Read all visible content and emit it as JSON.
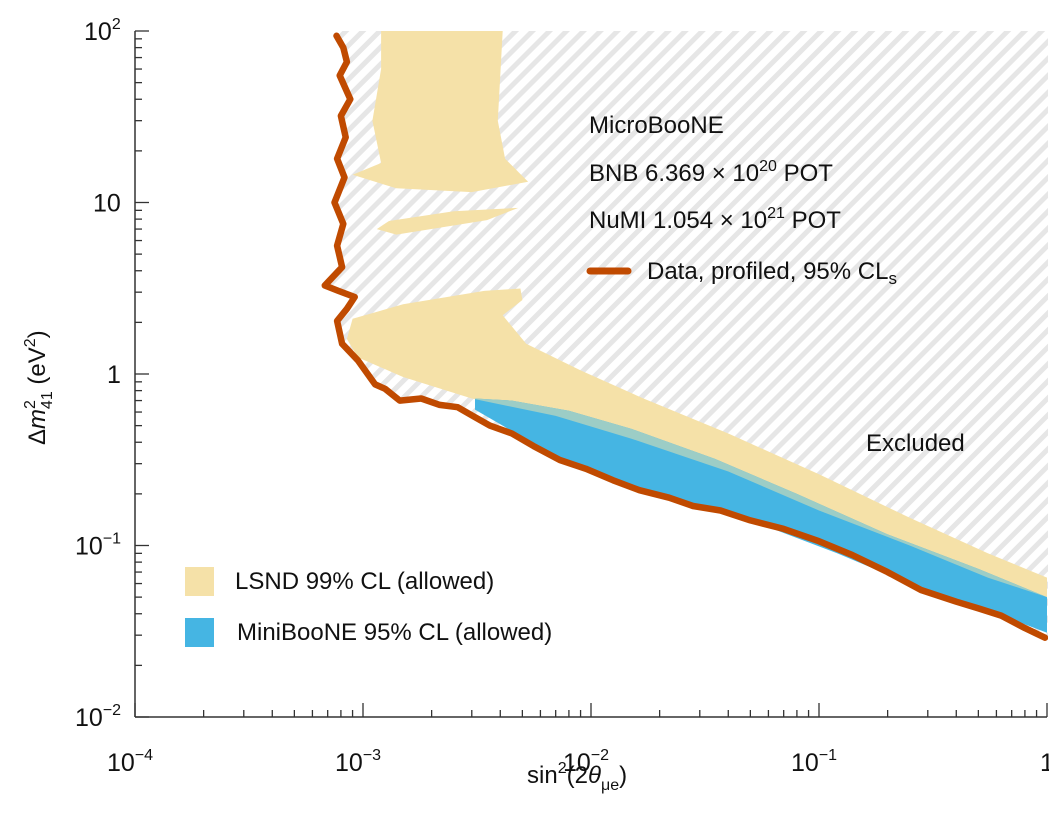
{
  "chart_data": {
    "type": "area",
    "title": "",
    "xlabel": "sin²(2θ_μe)",
    "xlabel_parts": {
      "base": "sin",
      "sup": "2",
      "open": "(2",
      "theta": "θ",
      "sub": "μe",
      "close": ")"
    },
    "ylabel": "Δm²₄₁ (eV²)",
    "ylabel_parts": {
      "delta": "Δ",
      "m": "m",
      "sup": "2",
      "sub": "41",
      "unit_open": " (eV",
      "unit_sup": "2",
      "unit_close": ")"
    },
    "xscale": "log",
    "yscale": "log",
    "xlim": [
      0.0001,
      1
    ],
    "ylim": [
      0.01,
      100
    ],
    "grid": false,
    "x_ticks": [
      {
        "value": 0.0001,
        "base": "10",
        "exp": "−4"
      },
      {
        "value": 0.001,
        "base": "10",
        "exp": "−3"
      },
      {
        "value": 0.01,
        "base": "10",
        "exp": "−2"
      },
      {
        "value": 0.1,
        "base": "10",
        "exp": "−1"
      },
      {
        "value": 1,
        "base": "1",
        "exp": ""
      }
    ],
    "y_ticks": [
      {
        "value": 0.01,
        "base": "10",
        "exp": "−2"
      },
      {
        "value": 0.1,
        "base": "10",
        "exp": "−1"
      },
      {
        "value": 1,
        "base": "1",
        "exp": ""
      },
      {
        "value": 10,
        "base": "10",
        "exp": ""
      },
      {
        "value": 100,
        "base": "10",
        "exp": "2"
      }
    ],
    "annotations": {
      "experiment": "MicroBooNE",
      "bnb": {
        "prefix": "BNB 6.369 × 10",
        "exp": "20",
        "suffix": " POT"
      },
      "numi": {
        "prefix": "NuMI 1.054 × 10",
        "exp": "21",
        "suffix": " POT"
      },
      "excluded_label": "Excluded"
    },
    "legend": {
      "placement": "lower-left",
      "entries": [
        {
          "label": "LSND 99% CL (allowed)",
          "color": "#f5e1a8",
          "kind": "patch"
        },
        {
          "label": "MiniBooNE 95% CL (allowed)",
          "color": "#45b5e3",
          "kind": "patch"
        }
      ],
      "line_entry": {
        "label": "Data, profiled, 95% CL",
        "sub": "s",
        "color": "#c04a00",
        "kind": "line"
      }
    },
    "colors": {
      "data_line": "#c04a00",
      "lsnd": "#f5e1a8",
      "miniboone": "#45b5e3",
      "overlap": "#9ccdc6",
      "hatch": "#e6e6e6",
      "axis": "#333333"
    },
    "series": [
      {
        "name": "Data, profiled, 95% CLs",
        "kind": "exclusion-contour",
        "points": [
          [
            0.000765,
            93.7
          ],
          [
            0.00082,
            80
          ],
          [
            0.00085,
            66
          ],
          [
            0.00079,
            55
          ],
          [
            0.00088,
            40
          ],
          [
            0.0008,
            32
          ],
          [
            0.00084,
            24
          ],
          [
            0.00077,
            18
          ],
          [
            0.00083,
            14
          ],
          [
            0.00075,
            10
          ],
          [
            0.00082,
            7.5
          ],
          [
            0.00077,
            5.6
          ],
          [
            0.00081,
            4.2
          ],
          [
            0.00068,
            3.28
          ],
          [
            0.00078,
            3.05
          ],
          [
            0.00092,
            2.81
          ],
          [
            0.00085,
            2.4
          ],
          [
            0.00077,
            2.04
          ],
          [
            0.00081,
            1.5
          ],
          [
            0.00095,
            1.2
          ],
          [
            0.00113,
            0.87
          ],
          [
            0.00125,
            0.82
          ],
          [
            0.00145,
            0.7
          ],
          [
            0.0018,
            0.72
          ],
          [
            0.00217,
            0.66
          ],
          [
            0.0026,
            0.64
          ],
          [
            0.0031,
            0.56
          ],
          [
            0.0036,
            0.5
          ],
          [
            0.0045,
            0.45
          ],
          [
            0.0056,
            0.38
          ],
          [
            0.0073,
            0.315
          ],
          [
            0.0095,
            0.28
          ],
          [
            0.0125,
            0.24
          ],
          [
            0.0163,
            0.21
          ],
          [
            0.022,
            0.19
          ],
          [
            0.028,
            0.17
          ],
          [
            0.037,
            0.16
          ],
          [
            0.05,
            0.14
          ],
          [
            0.07,
            0.125
          ],
          [
            0.1,
            0.106
          ],
          [
            0.14,
            0.088
          ],
          [
            0.2,
            0.07
          ],
          [
            0.28,
            0.055
          ],
          [
            0.4,
            0.047
          ],
          [
            0.5,
            0.043
          ],
          [
            0.63,
            0.039
          ],
          [
            0.8,
            0.033
          ],
          [
            0.98,
            0.029
          ]
        ]
      },
      {
        "name": "LSND 99% CL (allowed)",
        "kind": "region",
        "regions": [
          [
            [
              0.0012,
              100
            ],
            [
              0.0041,
              100
            ],
            [
              0.0039,
              30
            ],
            [
              0.0042,
              18
            ],
            [
              0.0053,
              13.2
            ],
            [
              0.003,
              11.5
            ],
            [
              0.0014,
              12.1
            ],
            [
              0.0009,
              14.5
            ],
            [
              0.0012,
              17
            ],
            [
              0.0011,
              30
            ],
            [
              0.0012,
              60
            ]
          ],
          [
            [
              0.0013,
              7.8
            ],
            [
              0.0025,
              8.9
            ],
            [
              0.0048,
              9.3
            ],
            [
              0.0035,
              7.9
            ],
            [
              0.0014,
              6.5
            ],
            [
              0.00115,
              7.0
            ]
          ],
          [
            [
              0.00085,
              1.6
            ],
            [
              0.0009,
              2.1
            ],
            [
              0.0015,
              2.55
            ],
            [
              0.0034,
              3.05
            ],
            [
              0.0049,
              3.15
            ],
            [
              0.005,
              2.7
            ],
            [
              0.0041,
              2.2
            ],
            [
              0.0052,
              1.5
            ],
            [
              0.009,
              1.05
            ],
            [
              0.017,
              0.72
            ],
            [
              0.04,
              0.45
            ],
            [
              0.1,
              0.26
            ],
            [
              0.25,
              0.145
            ],
            [
              0.55,
              0.09
            ],
            [
              1.0,
              0.065
            ],
            [
              1.0,
              0.05
            ],
            [
              0.55,
              0.065
            ],
            [
              0.25,
              0.1
            ],
            [
              0.1,
              0.16
            ],
            [
              0.04,
              0.27
            ],
            [
              0.015,
              0.42
            ],
            [
              0.007,
              0.57
            ],
            [
              0.003,
              0.72
            ],
            [
              0.0015,
              0.96
            ],
            [
              0.00095,
              1.25
            ]
          ]
        ]
      },
      {
        "name": "MiniBooNE 95% CL (allowed)",
        "kind": "region",
        "regions": [
          [
            [
              0.0031,
              0.72
            ],
            [
              0.0045,
              0.7
            ],
            [
              0.008,
              0.61
            ],
            [
              0.015,
              0.48
            ],
            [
              0.035,
              0.32
            ],
            [
              0.08,
              0.2
            ],
            [
              0.2,
              0.116
            ],
            [
              0.5,
              0.073
            ],
            [
              1.0,
              0.05
            ],
            [
              1.0,
              0.031
            ],
            [
              0.6,
              0.04
            ],
            [
              0.3,
              0.054
            ],
            [
              0.12,
              0.09
            ],
            [
              0.05,
              0.14
            ],
            [
              0.025,
              0.18
            ],
            [
              0.0115,
              0.25
            ],
            [
              0.0062,
              0.36
            ],
            [
              0.0041,
              0.5
            ],
            [
              0.0031,
              0.62
            ]
          ]
        ]
      }
    ]
  }
}
